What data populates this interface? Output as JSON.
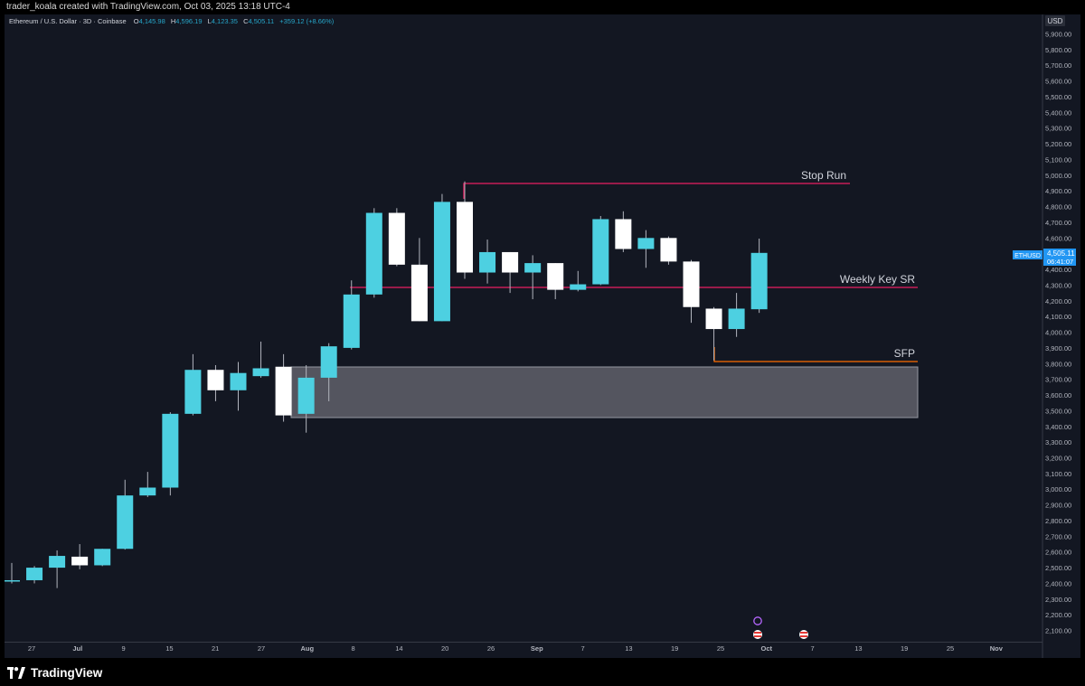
{
  "header": {
    "credit": "trader_koala created with TradingView.com, Oct 03, 2025 13:18 UTC-4"
  },
  "legend": {
    "symbol": "Ethereum / U.S. Dollar · 3D · Coinbase",
    "o_label": "O",
    "o_value": "4,145.98",
    "h_label": "H",
    "h_value": "4,596.19",
    "l_label": "L",
    "l_value": "4,123.35",
    "c_label": "C",
    "c_value": "4,505.11",
    "change": "+359.12 (+8.66%)"
  },
  "price_scale": {
    "currency": "USD",
    "ticks": [
      "5,900.00",
      "5,800.00",
      "5,700.00",
      "5,600.00",
      "5,500.00",
      "5,400.00",
      "5,300.00",
      "5,200.00",
      "5,100.00",
      "5,000.00",
      "4,900.00",
      "4,800.00",
      "4,700.00",
      "4,600.00",
      "4,500.00",
      "4,400.00",
      "4,300.00",
      "4,200.00",
      "4,100.00",
      "4,000.00",
      "3,900.00",
      "3,800.00",
      "3,700.00",
      "3,600.00",
      "3,500.00",
      "3,400.00",
      "3,300.00",
      "3,200.00",
      "3,100.00",
      "3,000.00",
      "2,900.00",
      "2,800.00",
      "2,700.00",
      "2,600.00",
      "2,500.00",
      "2,400.00",
      "2,300.00",
      "2,200.00",
      "2,100.00"
    ],
    "last_price_label": {
      "symbol": "ETHUSD",
      "price": "4,505.11",
      "countdown": "06:41:07"
    }
  },
  "time_axis": {
    "labels": [
      {
        "text": "27",
        "bold": false
      },
      {
        "text": "Jul",
        "bold": true
      },
      {
        "text": "9",
        "bold": false
      },
      {
        "text": "15",
        "bold": false
      },
      {
        "text": "21",
        "bold": false
      },
      {
        "text": "27",
        "bold": false
      },
      {
        "text": "Aug",
        "bold": true
      },
      {
        "text": "8",
        "bold": false
      },
      {
        "text": "14",
        "bold": false
      },
      {
        "text": "20",
        "bold": false
      },
      {
        "text": "26",
        "bold": false
      },
      {
        "text": "Sep",
        "bold": true
      },
      {
        "text": "7",
        "bold": false
      },
      {
        "text": "13",
        "bold": false
      },
      {
        "text": "19",
        "bold": false
      },
      {
        "text": "25",
        "bold": false
      },
      {
        "text": "Oct",
        "bold": true
      },
      {
        "text": "7",
        "bold": false
      },
      {
        "text": "13",
        "bold": false
      },
      {
        "text": "19",
        "bold": false
      },
      {
        "text": "25",
        "bold": false
      },
      {
        "text": "Nov",
        "bold": true
      }
    ]
  },
  "annotations": {
    "stop_run": "Stop Run",
    "weekly_key_sr": "Weekly Key SR",
    "sfp": "SFP"
  },
  "colors": {
    "background": "#131722",
    "bull": "#4dd0e1",
    "bear": "#ffffff",
    "wick": "#b2b5be",
    "magenta_line": "#e91e63",
    "orange_line": "#ff6d00",
    "zone_fill": "#5d5e68",
    "last_price": "#2196f3"
  },
  "footer": {
    "brand": "TradingView"
  },
  "chart_data": {
    "type": "candlestick",
    "symbol": "ETHUSD",
    "timeframe": "3D",
    "ylim": [
      2050,
      5980
    ],
    "y_scale": "linear",
    "candles": [
      {
        "o": 2420,
        "h": 2530,
        "l": 2400,
        "c": 2420
      },
      {
        "o": 2420,
        "h": 2510,
        "l": 2400,
        "c": 2500
      },
      {
        "o": 2500,
        "h": 2610,
        "l": 2370,
        "c": 2575
      },
      {
        "o": 2570,
        "h": 2650,
        "l": 2490,
        "c": 2515
      },
      {
        "o": 2515,
        "h": 2620,
        "l": 2510,
        "c": 2620
      },
      {
        "o": 2620,
        "h": 3060,
        "l": 2615,
        "c": 2960
      },
      {
        "o": 2960,
        "h": 3110,
        "l": 2950,
        "c": 3010
      },
      {
        "o": 3010,
        "h": 3490,
        "l": 2960,
        "c": 3480
      },
      {
        "o": 3480,
        "h": 3860,
        "l": 3470,
        "c": 3760
      },
      {
        "o": 3760,
        "h": 3790,
        "l": 3560,
        "c": 3630
      },
      {
        "o": 3630,
        "h": 3810,
        "l": 3500,
        "c": 3740
      },
      {
        "o": 3720,
        "h": 3940,
        "l": 3710,
        "c": 3770
      },
      {
        "o": 3780,
        "h": 3860,
        "l": 3430,
        "c": 3470
      },
      {
        "o": 3480,
        "h": 3790,
        "l": 3360,
        "c": 3710
      },
      {
        "o": 3710,
        "h": 3930,
        "l": 3560,
        "c": 3910
      },
      {
        "o": 3900,
        "h": 4330,
        "l": 3890,
        "c": 4240
      },
      {
        "o": 4240,
        "h": 4790,
        "l": 4220,
        "c": 4760
      },
      {
        "o": 4760,
        "h": 4790,
        "l": 4420,
        "c": 4430
      },
      {
        "o": 4430,
        "h": 4600,
        "l": 4070,
        "c": 4070
      },
      {
        "o": 4070,
        "h": 4880,
        "l": 4070,
        "c": 4830
      },
      {
        "o": 4830,
        "h": 4960,
        "l": 4340,
        "c": 4380
      },
      {
        "o": 4380,
        "h": 4590,
        "l": 4310,
        "c": 4510
      },
      {
        "o": 4510,
        "h": 4510,
        "l": 4250,
        "c": 4380
      },
      {
        "o": 4380,
        "h": 4490,
        "l": 4210,
        "c": 4440
      },
      {
        "o": 4440,
        "h": 4440,
        "l": 4210,
        "c": 4270
      },
      {
        "o": 4270,
        "h": 4390,
        "l": 4260,
        "c": 4305
      },
      {
        "o": 4305,
        "h": 4740,
        "l": 4300,
        "c": 4720
      },
      {
        "o": 4720,
        "h": 4770,
        "l": 4510,
        "c": 4530
      },
      {
        "o": 4530,
        "h": 4650,
        "l": 4410,
        "c": 4600
      },
      {
        "o": 4600,
        "h": 4610,
        "l": 4430,
        "c": 4450
      },
      {
        "o": 4450,
        "h": 4460,
        "l": 4060,
        "c": 4160
      },
      {
        "o": 4150,
        "h": 4160,
        "l": 3820,
        "c": 4020
      },
      {
        "o": 4020,
        "h": 4250,
        "l": 3970,
        "c": 4150
      },
      {
        "o": 4146,
        "h": 4596,
        "l": 4123,
        "c": 4505
      }
    ],
    "levels": [
      {
        "name": "Stop Run",
        "price": 4955
      },
      {
        "name": "Weekly Key SR",
        "price": 4300
      },
      {
        "name": "SFP",
        "price": 3820
      }
    ],
    "zone": {
      "top": 3790,
      "bottom": 3465
    },
    "last_price": 4505.11
  }
}
